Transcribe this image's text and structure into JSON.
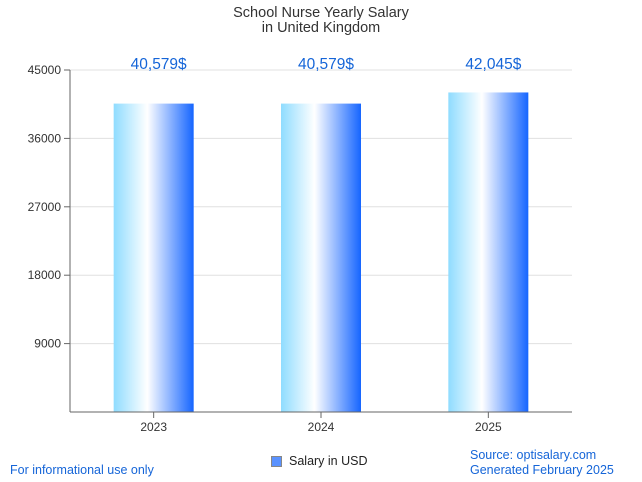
{
  "chart_data": {
    "type": "bar",
    "title_lines": [
      "School Nurse Yearly Salary",
      "in United Kingdom"
    ],
    "categories": [
      "2023",
      "2024",
      "2025"
    ],
    "series": [
      {
        "name": "Salary in USD",
        "values": [
          40579,
          40579,
          42045
        ],
        "data_labels": [
          "40,579$",
          "40,579$",
          "42,045$"
        ]
      }
    ],
    "ylim": [
      0,
      45000
    ],
    "yticks": [
      "45000",
      "36000",
      "27000",
      "18000",
      "9000"
    ],
    "ytick_values": [
      45000,
      36000,
      27000,
      18000,
      9000
    ],
    "xlabel": "",
    "ylabel": "",
    "grid": "horizontal",
    "legend_position": "bottom-center",
    "colors": {
      "bar_left": "#8fdcff",
      "bar_mid": "#ffffff",
      "bar_right": "#1565ff",
      "data_label": "#1565d8",
      "grid": "#e0e0e0",
      "axis": "#666666"
    }
  },
  "footer": {
    "left": "For informational use only",
    "source": "Source: optisalary.com",
    "generated": "Generated February 2025"
  }
}
